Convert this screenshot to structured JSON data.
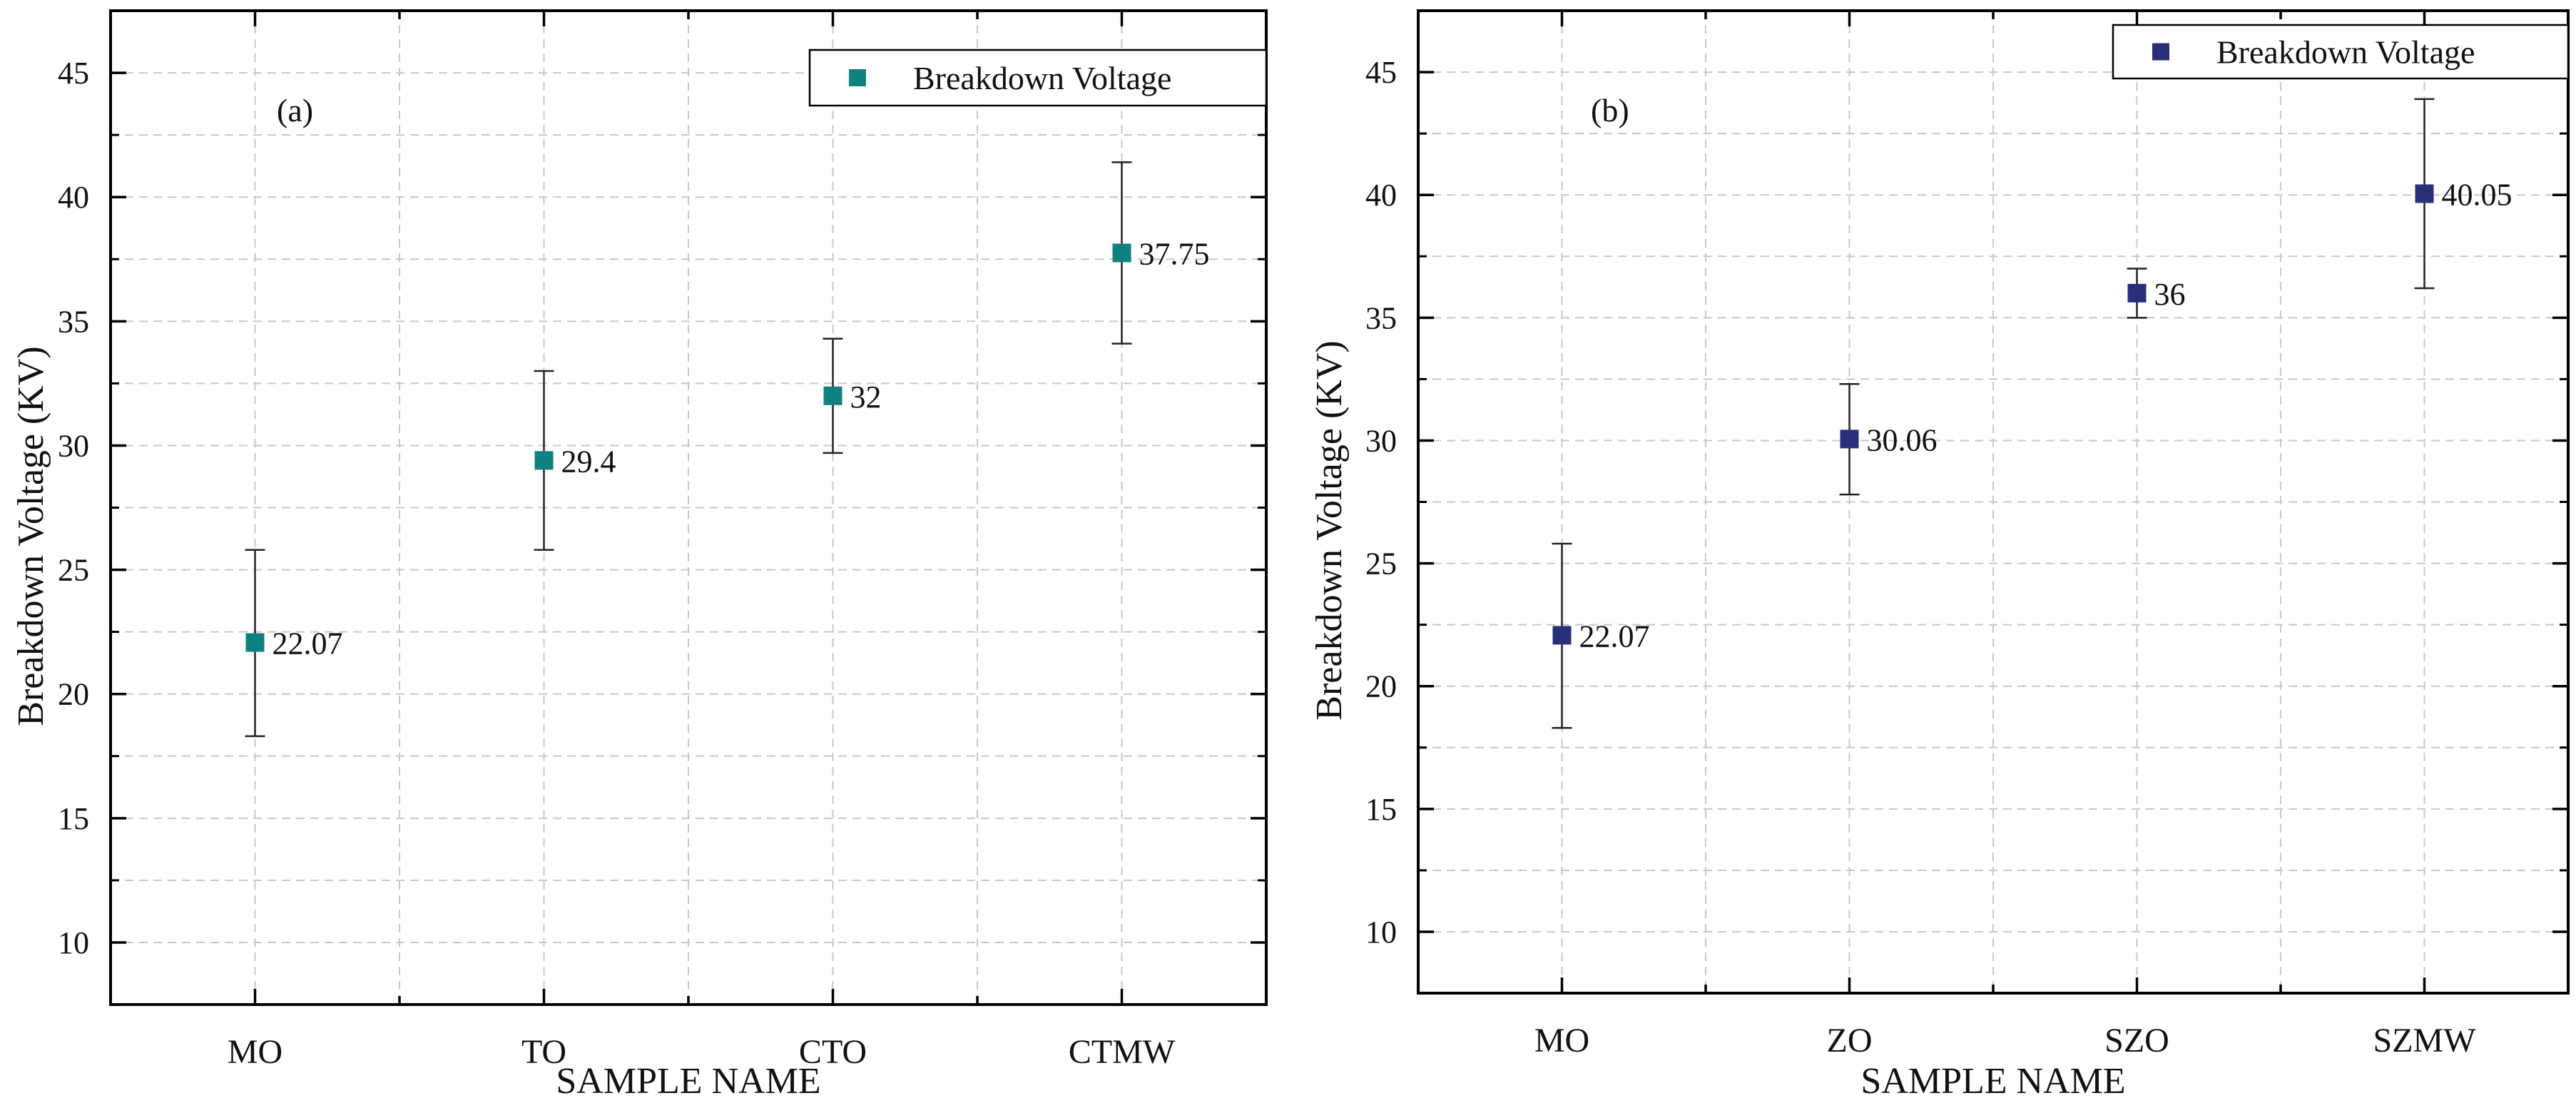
{
  "colors": {
    "series_a": "#108080",
    "series_b": "#2a2f7a",
    "grid": "#c8c8c8",
    "axis": "#000000"
  },
  "chart_data": [
    {
      "type": "scatter",
      "panel_label": "(a)",
      "categories": [
        "MO",
        "TO",
        "CTO",
        "CTMW"
      ],
      "series": [
        {
          "name": "Breakdown Voltage",
          "values": [
            22.07,
            29.4,
            32,
            37.75
          ],
          "value_labels": [
            "22.07",
            "29.4",
            "32",
            "37.75"
          ],
          "error_low": [
            18.3,
            25.8,
            29.7,
            34.1
          ],
          "error_high": [
            25.8,
            33.0,
            34.3,
            41.4
          ]
        }
      ],
      "xlabel": "SAMPLE NAME",
      "ylabel": "Breakdown Voltage (KV)",
      "ylim": [
        7.5,
        47.5
      ],
      "yticks": [
        10,
        15,
        20,
        25,
        30,
        35,
        40,
        45
      ],
      "ytick_labels": [
        "10",
        "15",
        "20",
        "25",
        "30",
        "35",
        "40",
        "45"
      ],
      "grid": true,
      "legend_position": "top-right",
      "marker": "square"
    },
    {
      "type": "scatter",
      "panel_label": "(b)",
      "categories": [
        "MO",
        "ZO",
        "SZO",
        "SZMW"
      ],
      "series": [
        {
          "name": "Breakdown Voltage",
          "values": [
            22.07,
            30.06,
            36,
            40.05
          ],
          "value_labels": [
            "22.07",
            "30.06",
            "36",
            "40.05"
          ],
          "error_low": [
            18.3,
            27.8,
            35.0,
            36.2
          ],
          "error_high": [
            25.8,
            32.3,
            37.0,
            43.9
          ]
        }
      ],
      "xlabel": "SAMPLE NAME",
      "ylabel": "Breakdown Voltage (KV)",
      "ylim": [
        7.5,
        47.5
      ],
      "yticks": [
        10,
        15,
        20,
        25,
        30,
        35,
        40,
        45
      ],
      "ytick_labels": [
        "10",
        "15",
        "20",
        "25",
        "30",
        "35",
        "40",
        "45"
      ],
      "grid": true,
      "legend_position": "top-right",
      "marker": "square"
    }
  ]
}
